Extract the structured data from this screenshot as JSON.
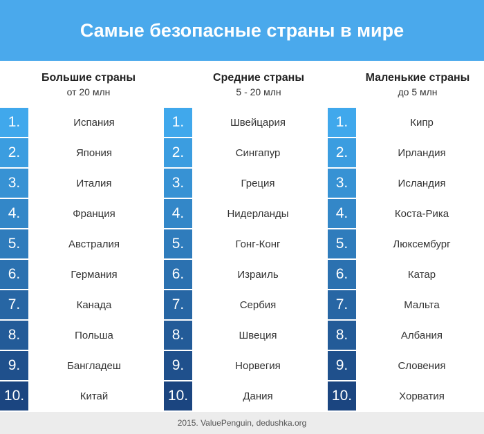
{
  "title": "Самые безопасные страны в мире",
  "rank_colors": [
    "#40a8ec",
    "#3b9de0",
    "#3792d4",
    "#3387c8",
    "#2f7cbc",
    "#2b71b0",
    "#2766a4",
    "#235b98",
    "#1f508c",
    "#1b4580"
  ],
  "columns": [
    {
      "title": "Большие страны",
      "subtitle": "от 20 млн",
      "rows": [
        {
          "rank": "1.",
          "country": "Испания"
        },
        {
          "rank": "2.",
          "country": "Япония"
        },
        {
          "rank": "3.",
          "country": "Италия"
        },
        {
          "rank": "4.",
          "country": "Франция"
        },
        {
          "rank": "5.",
          "country": "Австралия"
        },
        {
          "rank": "6.",
          "country": "Германия"
        },
        {
          "rank": "7.",
          "country": "Канада"
        },
        {
          "rank": "8.",
          "country": "Польша"
        },
        {
          "rank": "9.",
          "country": "Бангладеш"
        },
        {
          "rank": "10.",
          "country": "Китай"
        }
      ]
    },
    {
      "title": "Средние страны",
      "subtitle": "5 - 20 млн",
      "rows": [
        {
          "rank": "1.",
          "country": "Швейцария"
        },
        {
          "rank": "2.",
          "country": "Сингапур"
        },
        {
          "rank": "3.",
          "country": "Греция"
        },
        {
          "rank": "4.",
          "country": "Нидерланды"
        },
        {
          "rank": "5.",
          "country": "Гонг-Конг"
        },
        {
          "rank": "6.",
          "country": "Израиль"
        },
        {
          "rank": "7.",
          "country": "Сербия"
        },
        {
          "rank": "8.",
          "country": "Швеция"
        },
        {
          "rank": "9.",
          "country": "Норвегия"
        },
        {
          "rank": "10.",
          "country": "Дания"
        }
      ]
    },
    {
      "title": "Маленькие страны",
      "subtitle": "до 5 млн",
      "rows": [
        {
          "rank": "1.",
          "country": "Кипр"
        },
        {
          "rank": "2.",
          "country": "Ирландия"
        },
        {
          "rank": "3.",
          "country": "Исландия"
        },
        {
          "rank": "4.",
          "country": "Коста-Рика"
        },
        {
          "rank": "5.",
          "country": "Люксембург"
        },
        {
          "rank": "6.",
          "country": "Катар"
        },
        {
          "rank": "7.",
          "country": "Мальта"
        },
        {
          "rank": "8.",
          "country": "Албания"
        },
        {
          "rank": "9.",
          "country": "Словения"
        },
        {
          "rank": "10.",
          "country": "Хорватия"
        }
      ]
    }
  ],
  "footer": "2015. ValuePenguin, dedushka.org"
}
